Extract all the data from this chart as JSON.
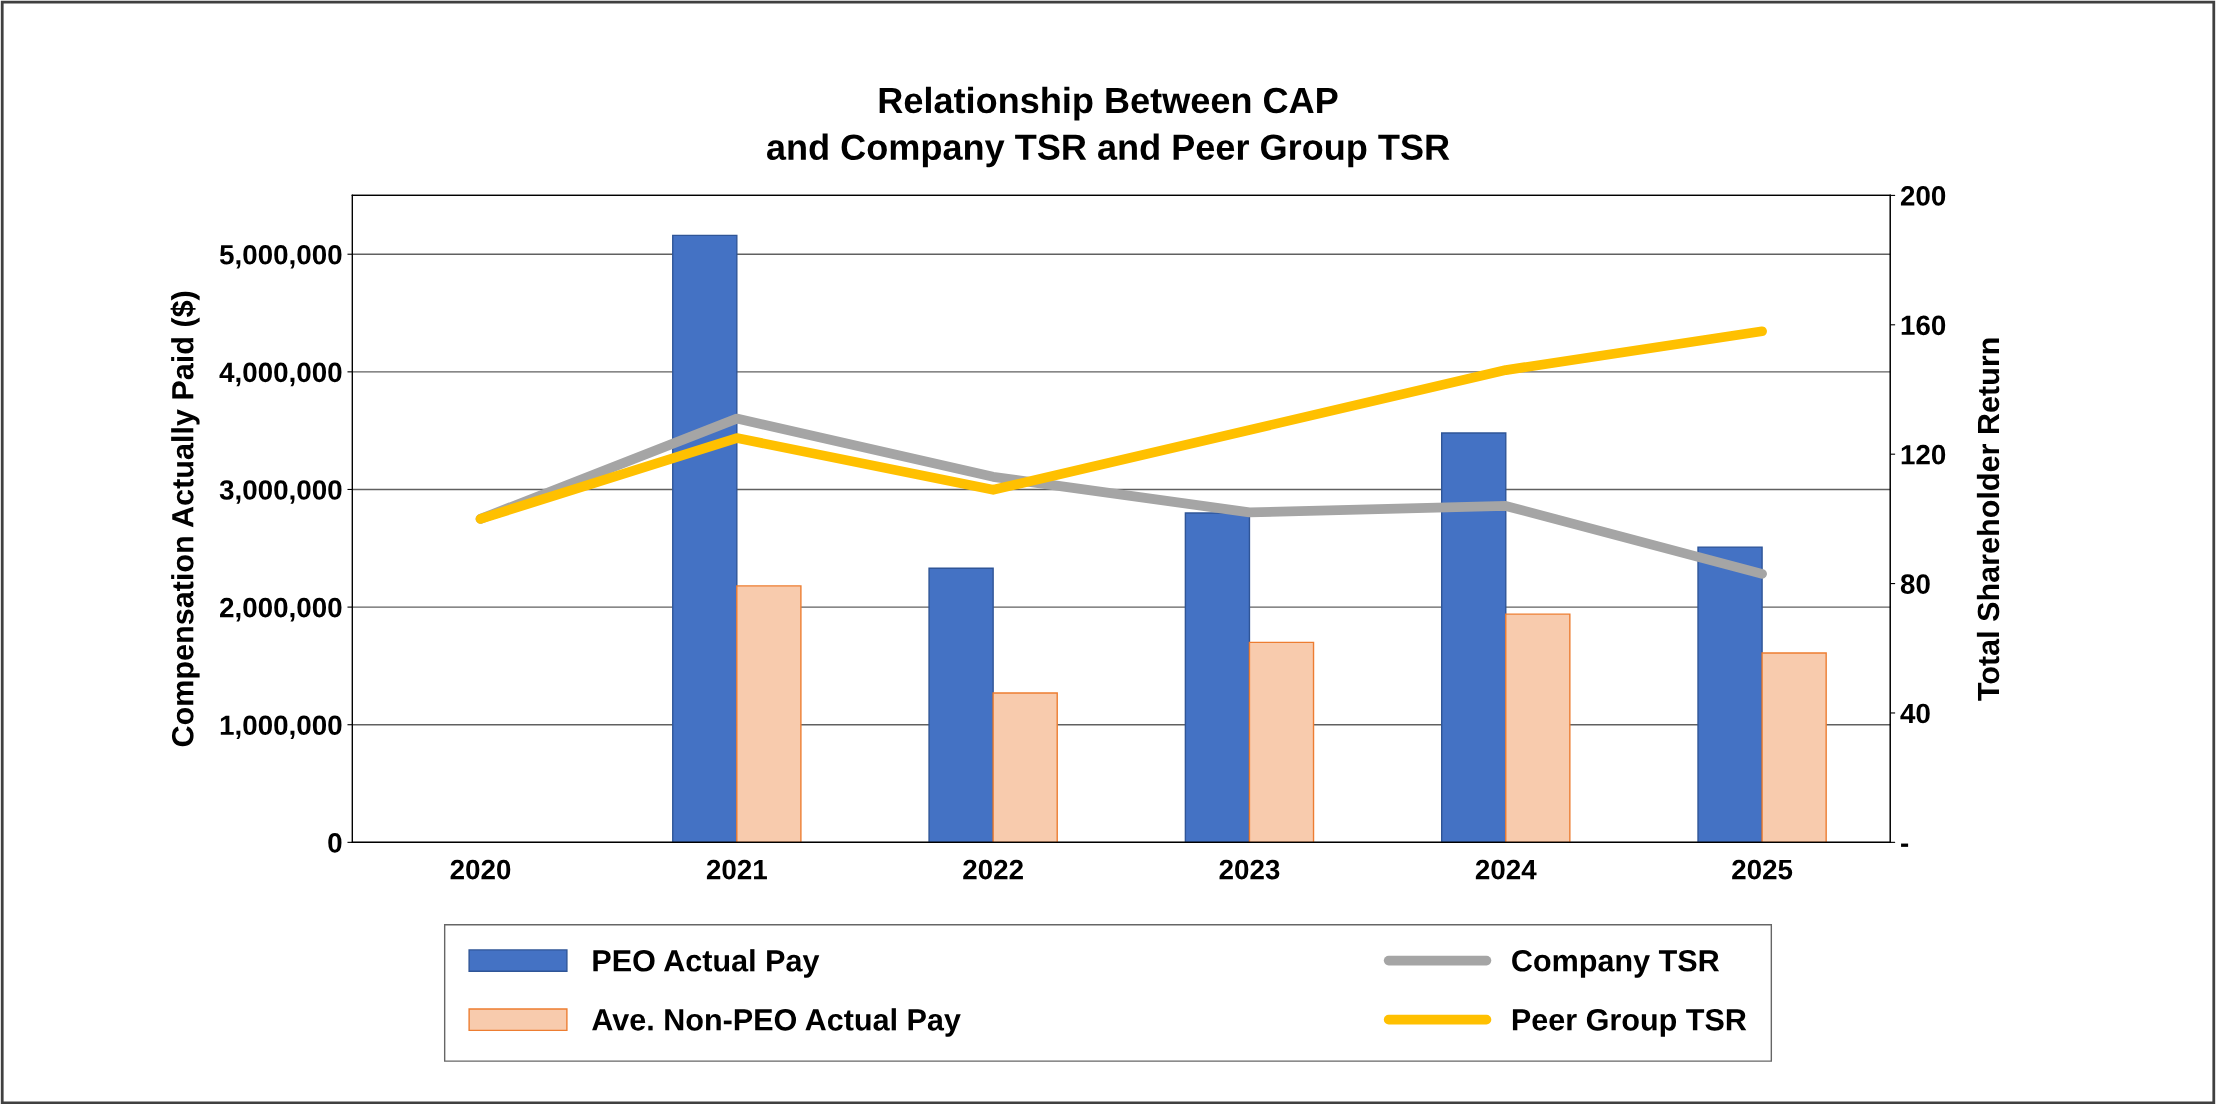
{
  "chart_data": {
    "type": "bar",
    "title": "Relationship Between CAP\nand Company TSR and Peer Group TSR",
    "ylabel": "Compensation Actually Paid ($)",
    "y2label": "Total Shareholder Return",
    "categories": [
      "2020",
      "2021",
      "2022",
      "2023",
      "2024",
      "2025"
    ],
    "series": [
      {
        "name": "PEO Actual Pay",
        "color": "#4472c4",
        "values": [
          null,
          5160000,
          2330000,
          2800000,
          3480000,
          2510000
        ]
      },
      {
        "name": "Ave. Non-PEO Actual Pay",
        "color": "#f8cbad",
        "values": [
          null,
          2180000,
          1270000,
          1700000,
          1940000,
          1610000
        ]
      },
      {
        "name": "Company TSR",
        "type": "line",
        "axis": "y2",
        "color": "#a5a5a5",
        "values": [
          100,
          131,
          113,
          102,
          104,
          83
        ]
      },
      {
        "name": "Peer Group TSR",
        "type": "line",
        "axis": "y2",
        "color": "#ffc000",
        "values": [
          100,
          125,
          109,
          127.5,
          146,
          158
        ]
      }
    ],
    "ylim": [
      0,
      5500000
    ],
    "yticks": [
      {
        "value": 0,
        "label": "0"
      },
      {
        "value": 1000000,
        "label": "1,000,000"
      },
      {
        "value": 2000000,
        "label": "2,000,000"
      },
      {
        "value": 3000000,
        "label": "3,000,000"
      },
      {
        "value": 4000000,
        "label": "4,000,000"
      },
      {
        "value": 5000000,
        "label": "5,000,000"
      }
    ],
    "y2lim": [
      0,
      200
    ],
    "y2ticks": [
      {
        "value": 0,
        "label": "-"
      },
      40,
      80,
      120,
      160,
      200
    ],
    "grid": "y",
    "legend": "bottom",
    "marker": "none",
    "line_style": "solid"
  }
}
